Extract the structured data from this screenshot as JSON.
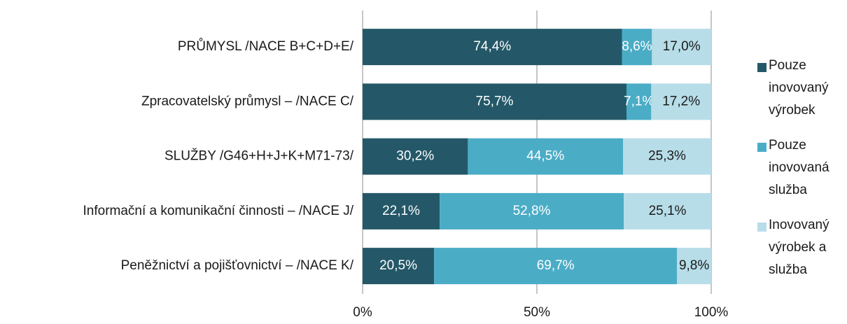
{
  "chart_data": {
    "type": "stacked-barh",
    "categories": [
      "PRŮMYSL  /NACE B+C+D+E/",
      "Zpracovatelský průmysl – /NACE C/",
      "SLUŽBY /G46+H+J+K+M71-73/",
      "Informační a komunikační činnosti – /NACE J/",
      "Peněžnictví a pojišťovnictví – /NACE K/"
    ],
    "series": [
      {
        "name": "Pouze inovovaný výrobek",
        "color": "#245868",
        "label_color": "#ffffff",
        "values": [
          74.4,
          75.7,
          30.2,
          22.1,
          20.5
        ],
        "value_labels": [
          "74,4%",
          "75,7%",
          "30,2%",
          "22,1%",
          "20,5%"
        ]
      },
      {
        "name": "Pouze inovovaná služba",
        "color": "#4bacc6",
        "label_color": "#ffffff",
        "values": [
          8.6,
          7.1,
          44.5,
          52.8,
          69.7
        ],
        "value_labels": [
          "8,6%",
          "7,1%",
          "44,5%",
          "52,8%",
          "69,7%"
        ]
      },
      {
        "name": "Inovovaný výrobek a služba",
        "color": "#b7dde8",
        "label_color": "#1a1a1a",
        "values": [
          17.0,
          17.2,
          25.3,
          25.1,
          9.8
        ],
        "value_labels": [
          "17,0%",
          "17,2%",
          "25,3%",
          "25,1%",
          "9,8%"
        ]
      }
    ],
    "xlim": [
      0,
      100
    ],
    "xticks": [
      {
        "value": 0,
        "label": "0%"
      },
      {
        "value": 50,
        "label": "50%"
      },
      {
        "value": 100,
        "label": "100%"
      }
    ],
    "grid": true,
    "legend": "right"
  }
}
